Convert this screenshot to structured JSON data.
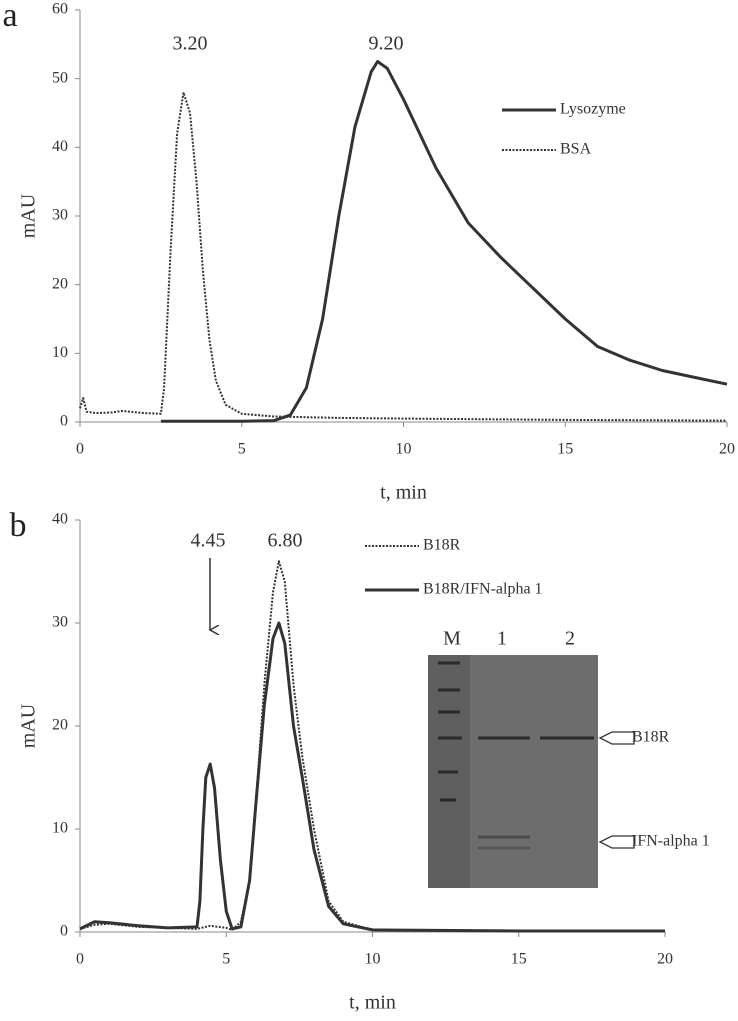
{
  "chart_data": [
    {
      "type": "line",
      "panel_label": "a",
      "ylabel": "mAU",
      "xlabel": "t, min",
      "xlim": [
        0,
        20
      ],
      "ylim": [
        0,
        60
      ],
      "xticks": [
        0,
        5,
        10,
        15,
        20
      ],
      "yticks": [
        0,
        10,
        20,
        30,
        40,
        50,
        60
      ],
      "annotations": [
        "3.20",
        "9.20"
      ],
      "series": [
        {
          "name": "Lysozyme",
          "color": "#333333",
          "style": "solid",
          "x": [
            2.5,
            4,
            5,
            6,
            6.5,
            7,
            7.5,
            8,
            8.5,
            9,
            9.2,
            9.5,
            10,
            10.5,
            11,
            12,
            13,
            14,
            15,
            16,
            17,
            18,
            19,
            20
          ],
          "values": [
            0.1,
            0.1,
            0.1,
            0.2,
            1,
            5,
            15,
            30,
            43,
            51,
            52.5,
            51.5,
            47,
            42,
            37,
            29,
            24,
            19.5,
            15,
            11,
            9,
            7.5,
            6.5,
            5.5
          ]
        },
        {
          "name": "BSA",
          "color": "#333333",
          "style": "dotted",
          "x": [
            0,
            0.1,
            0.2,
            0.5,
            1,
            1.3,
            2,
            2.5,
            2.6,
            2.8,
            3,
            3.2,
            3.4,
            3.6,
            3.8,
            4,
            4.2,
            4.5,
            5,
            6,
            8,
            10,
            15,
            20
          ],
          "values": [
            2,
            3.5,
            1.5,
            1.3,
            1.4,
            1.6,
            1.3,
            1.2,
            5,
            25,
            42,
            48,
            45,
            35,
            22,
            12,
            6,
            2.5,
            1.2,
            0.8,
            0.6,
            0.5,
            0.3,
            0.2
          ]
        }
      ]
    },
    {
      "type": "line",
      "panel_label": "b",
      "ylabel": "mAU",
      "xlabel": "t, min",
      "xlim": [
        0,
        20
      ],
      "ylim": [
        0,
        40
      ],
      "xticks": [
        0,
        5,
        10,
        15,
        20
      ],
      "yticks": [
        0,
        10,
        20,
        30,
        40
      ],
      "annotations": [
        "4.45",
        "6.80"
      ],
      "inset": {
        "lane_labels": [
          "M",
          "1",
          "2"
        ],
        "band_labels": [
          "B18R",
          "IFN-alpha 1"
        ]
      },
      "series": [
        {
          "name": "B18R",
          "color": "#333333",
          "style": "dotted",
          "x": [
            0,
            0.5,
            1,
            2,
            3,
            4,
            4.45,
            5,
            5.2,
            5.5,
            5.8,
            6,
            6.3,
            6.6,
            6.8,
            7,
            7.3,
            7.6,
            8,
            8.5,
            9,
            10,
            15,
            20
          ],
          "values": [
            0.3,
            0.7,
            0.8,
            0.5,
            0.4,
            0.3,
            0.6,
            0.4,
            0.2,
            1,
            5,
            12,
            24,
            33,
            36,
            34,
            24,
            17,
            10,
            3,
            1,
            0.2,
            0.1,
            0.1
          ]
        },
        {
          "name": "B18R/IFN-alpha 1",
          "color": "#333333",
          "style": "solid",
          "x": [
            0,
            0.5,
            1,
            2,
            3,
            4,
            4.1,
            4.2,
            4.3,
            4.45,
            4.6,
            4.8,
            5,
            5.2,
            5.5,
            5.8,
            6,
            6.3,
            6.6,
            6.8,
            7,
            7.3,
            7.6,
            8,
            8.5,
            9,
            10,
            15,
            20
          ],
          "values": [
            0.3,
            1,
            0.9,
            0.6,
            0.4,
            0.5,
            3,
            10,
            15,
            16.3,
            14,
            7,
            2,
            0.3,
            0.5,
            5,
            12,
            22,
            28.5,
            30,
            28,
            20,
            15,
            8,
            2.5,
            0.8,
            0.2,
            0.1,
            0.1
          ]
        }
      ]
    }
  ]
}
